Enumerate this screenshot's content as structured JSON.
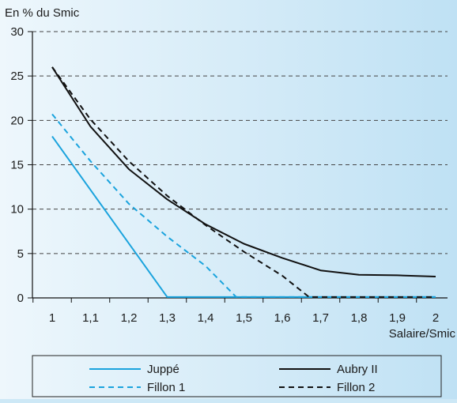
{
  "chart_data": {
    "type": "line",
    "ylabel": "En % du Smic",
    "xlabel": "Salaire/Smic",
    "x": [
      1,
      1.1,
      1.2,
      1.3,
      1.4,
      1.5,
      1.6,
      1.7,
      1.8,
      1.9,
      2
    ],
    "x_tick_labels": [
      "1",
      "1,1",
      "1,2",
      "1,3",
      "1,4",
      "1,5",
      "1,6",
      "1,7",
      "1,8",
      "1,9",
      "2"
    ],
    "ylim": [
      0,
      30
    ],
    "y_ticks": [
      0,
      5,
      10,
      15,
      20,
      25,
      30
    ],
    "grid": "horizontal dashed",
    "legend_position": "bottom",
    "series": [
      {
        "name": "Juppé",
        "color": "#1aa3dd",
        "dash": "solid",
        "points": [
          [
            1,
            18.2
          ],
          [
            1.3,
            0.1
          ],
          [
            2,
            0.1
          ]
        ]
      },
      {
        "name": "Aubry II",
        "color": "#111111",
        "dash": "solid",
        "points": [
          [
            1,
            26
          ],
          [
            1.1,
            19.3
          ],
          [
            1.2,
            14.5
          ],
          [
            1.3,
            11.1
          ],
          [
            1.4,
            8.3
          ],
          [
            1.5,
            6.1
          ],
          [
            1.6,
            4.5
          ],
          [
            1.7,
            3.1
          ],
          [
            1.8,
            2.6
          ],
          [
            1.9,
            2.55
          ],
          [
            2,
            2.4
          ]
        ]
      },
      {
        "name": "Fillon 1",
        "color": "#1aa3dd",
        "dash": "dashed",
        "points": [
          [
            1,
            20.7
          ],
          [
            1.1,
            15.4
          ],
          [
            1.2,
            10.6
          ],
          [
            1.3,
            6.9
          ],
          [
            1.4,
            3.6
          ],
          [
            1.48,
            0.1
          ],
          [
            2,
            0.1
          ]
        ]
      },
      {
        "name": "Fillon 2",
        "color": "#111111",
        "dash": "dashed",
        "points": [
          [
            1,
            26
          ],
          [
            1.1,
            20.1
          ],
          [
            1.2,
            15.4
          ],
          [
            1.3,
            11.5
          ],
          [
            1.4,
            8.2
          ],
          [
            1.5,
            5.2
          ],
          [
            1.6,
            2.5
          ],
          [
            1.67,
            0.1
          ],
          [
            2,
            0.1
          ]
        ]
      }
    ]
  }
}
